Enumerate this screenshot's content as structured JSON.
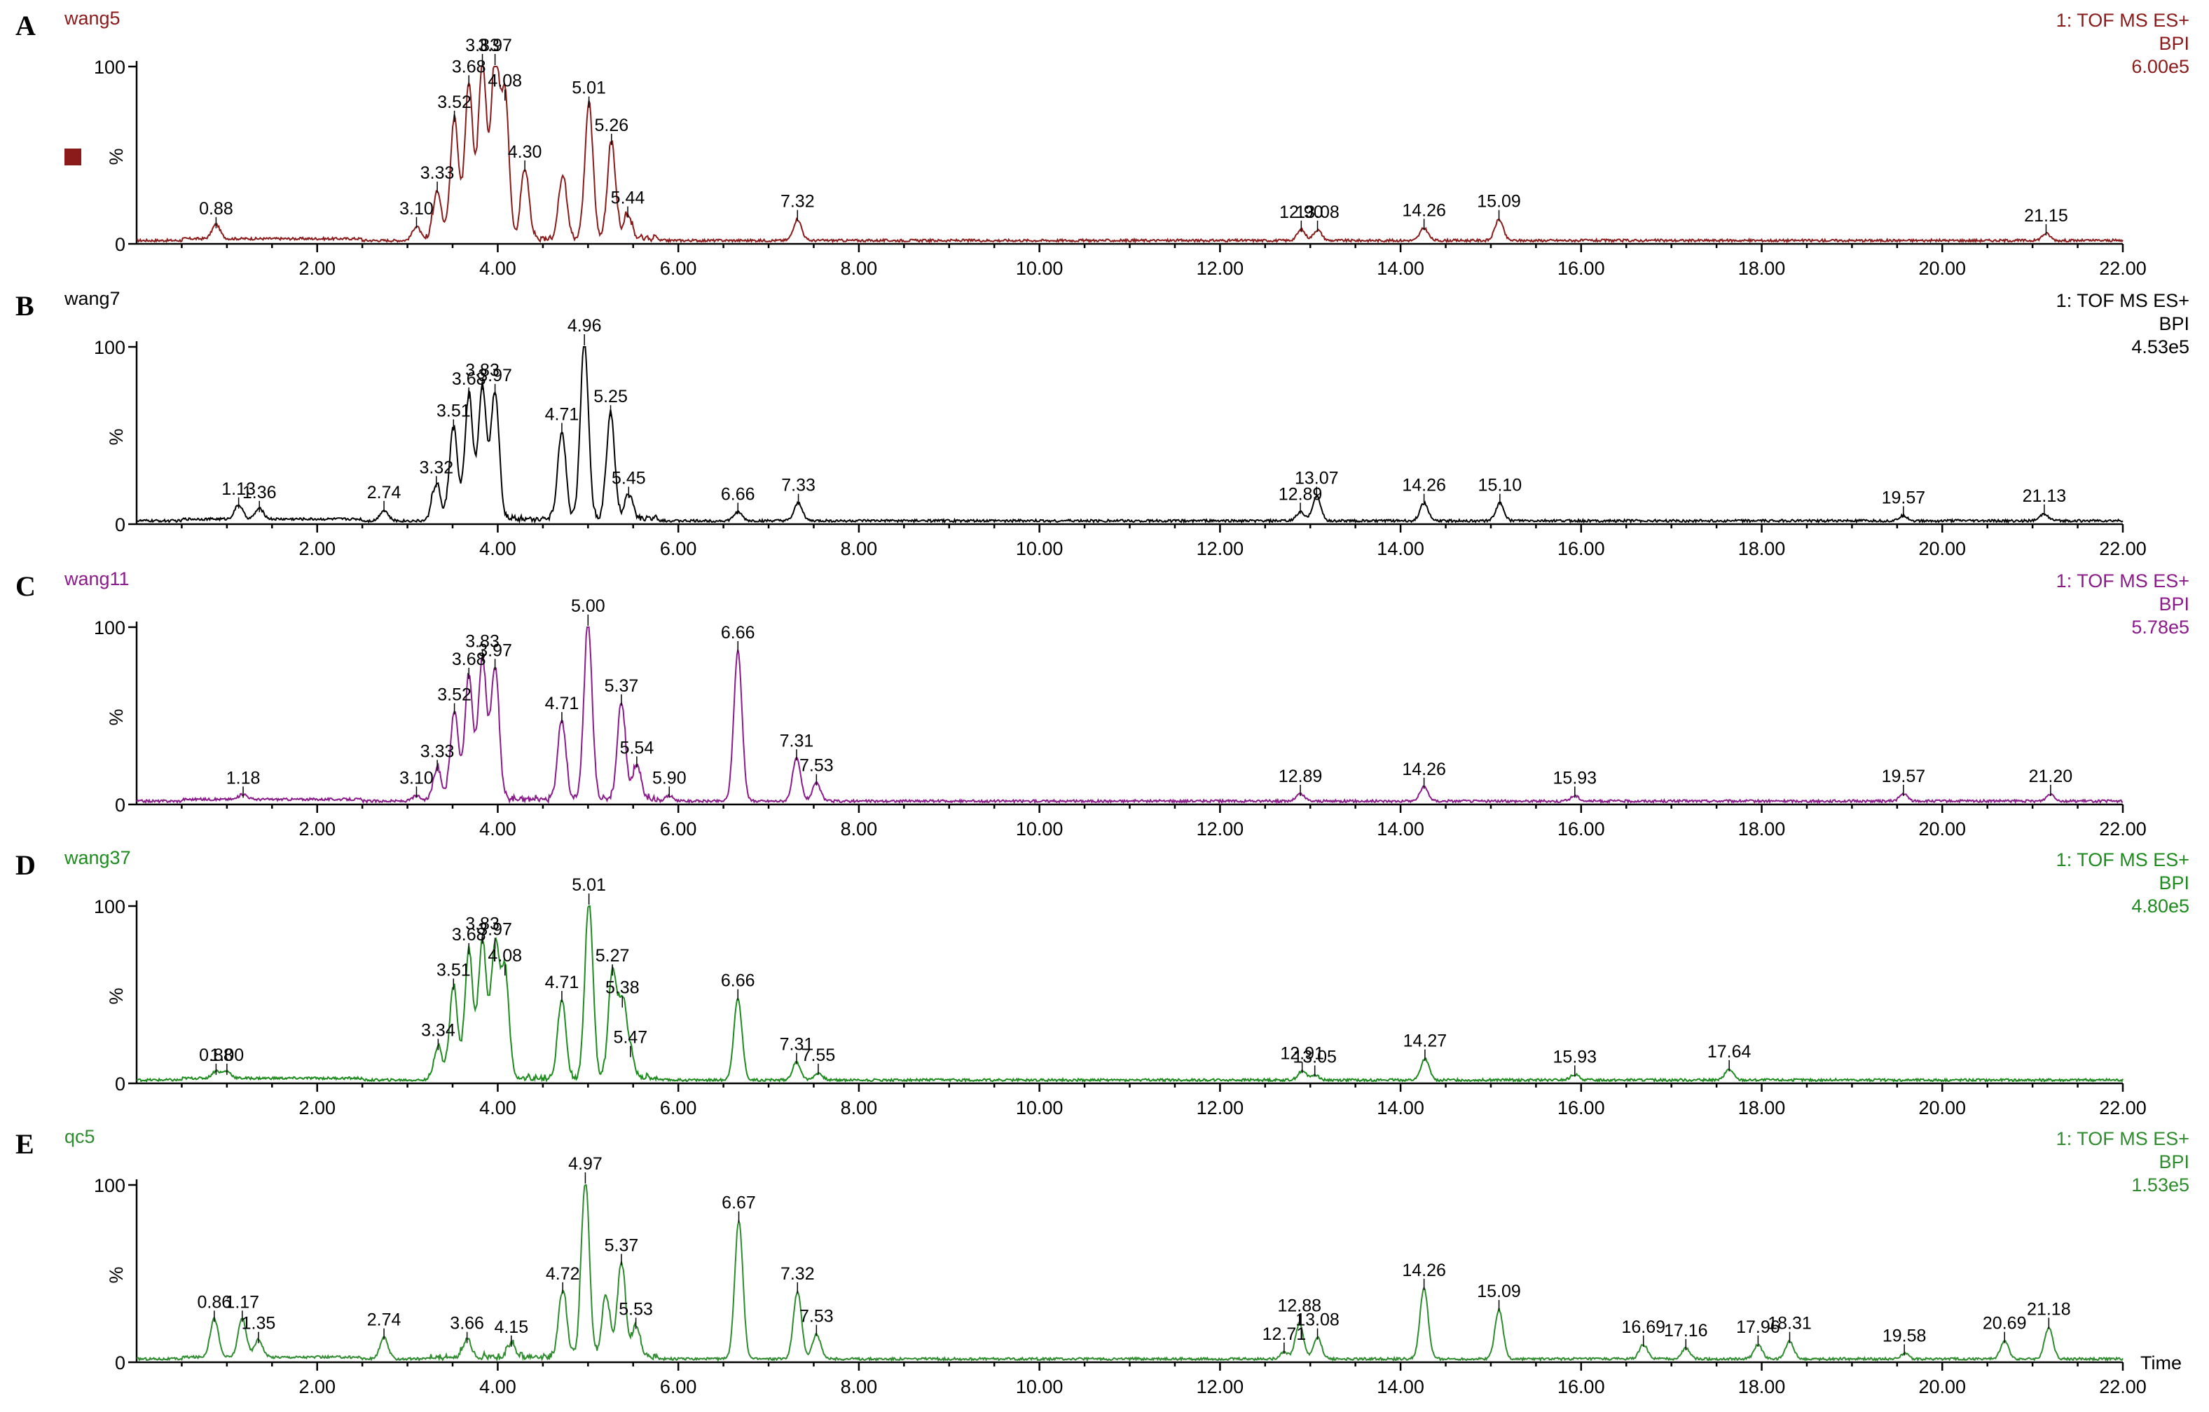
{
  "chart_data": [
    {
      "type": "line",
      "panel": "A",
      "sample": "wang5",
      "color": "#8B1A1A",
      "header": [
        "1: TOF MS ES+",
        "BPI",
        "6.00e5"
      ],
      "ylabel": "%",
      "xlim": [
        0,
        22
      ],
      "ylim": [
        0,
        100
      ],
      "yticks": [
        "0",
        "100"
      ],
      "xticks": [
        "2.00",
        "4.00",
        "6.00",
        "8.00",
        "10.00",
        "12.00",
        "14.00",
        "16.00",
        "18.00",
        "20.00",
        "22.00"
      ],
      "legend_marker": true,
      "peaks": [
        {
          "x": 0.88,
          "y": 8,
          "label": "0.88"
        },
        {
          "x": 3.1,
          "y": 8,
          "label": "3.10"
        },
        {
          "x": 3.33,
          "y": 28,
          "label": "3.33"
        },
        {
          "x": 3.52,
          "y": 68,
          "label": "3.52"
        },
        {
          "x": 3.68,
          "y": 88,
          "label": "3.68"
        },
        {
          "x": 3.83,
          "y": 100,
          "label": "3.83"
        },
        {
          "x": 3.97,
          "y": 100,
          "label": "3.97"
        },
        {
          "x": 4.08,
          "y": 80,
          "label": "4.08"
        },
        {
          "x": 4.3,
          "y": 40,
          "label": "4.30"
        },
        {
          "x": 4.72,
          "y": 36,
          "label": ""
        },
        {
          "x": 5.01,
          "y": 76,
          "label": "5.01"
        },
        {
          "x": 5.26,
          "y": 55,
          "label": "5.26"
        },
        {
          "x": 5.44,
          "y": 14,
          "label": "5.44"
        },
        {
          "x": 7.32,
          "y": 12,
          "label": "7.32"
        },
        {
          "x": 12.9,
          "y": 6,
          "label": "12.90"
        },
        {
          "x": 13.08,
          "y": 6,
          "label": "13.08"
        },
        {
          "x": 14.26,
          "y": 7,
          "label": "14.26"
        },
        {
          "x": 15.09,
          "y": 12,
          "label": "15.09"
        },
        {
          "x": 21.15,
          "y": 4,
          "label": "21.15"
        }
      ]
    },
    {
      "type": "line",
      "panel": "B",
      "sample": "wang7",
      "color": "#000000",
      "header": [
        "1: TOF MS ES+",
        "BPI",
        "4.53e5"
      ],
      "ylabel": "%",
      "xlim": [
        0,
        22
      ],
      "ylim": [
        0,
        100
      ],
      "yticks": [
        "0",
        "100"
      ],
      "xticks": [
        "2.00",
        "4.00",
        "6.00",
        "8.00",
        "10.00",
        "12.00",
        "14.00",
        "16.00",
        "18.00",
        "20.00",
        "22.00"
      ],
      "legend_marker": false,
      "peaks": [
        {
          "x": 1.13,
          "y": 8,
          "label": "1.13"
        },
        {
          "x": 1.36,
          "y": 6,
          "label": "1.36"
        },
        {
          "x": 2.74,
          "y": 6,
          "label": "2.74"
        },
        {
          "x": 3.32,
          "y": 20,
          "label": "3.32"
        },
        {
          "x": 3.51,
          "y": 52,
          "label": "3.51"
        },
        {
          "x": 3.68,
          "y": 70,
          "label": "3.68"
        },
        {
          "x": 3.83,
          "y": 75,
          "label": "3.83"
        },
        {
          "x": 3.97,
          "y": 72,
          "label": "3.97"
        },
        {
          "x": 4.71,
          "y": 50,
          "label": "4.71"
        },
        {
          "x": 4.96,
          "y": 100,
          "label": "4.96"
        },
        {
          "x": 5.25,
          "y": 60,
          "label": "5.25"
        },
        {
          "x": 5.45,
          "y": 14,
          "label": "5.45"
        },
        {
          "x": 6.66,
          "y": 5,
          "label": "6.66"
        },
        {
          "x": 7.33,
          "y": 10,
          "label": "7.33"
        },
        {
          "x": 12.89,
          "y": 5,
          "label": "12.89"
        },
        {
          "x": 13.07,
          "y": 14,
          "label": "13.07"
        },
        {
          "x": 14.26,
          "y": 10,
          "label": "14.26"
        },
        {
          "x": 15.1,
          "y": 10,
          "label": "15.10"
        },
        {
          "x": 19.57,
          "y": 3,
          "label": "19.57"
        },
        {
          "x": 21.13,
          "y": 4,
          "label": "21.13"
        }
      ]
    },
    {
      "type": "line",
      "panel": "C",
      "sample": "wang11",
      "color": "#8B1A8B",
      "header": [
        "1: TOF MS ES+",
        "BPI",
        "5.78e5"
      ],
      "ylabel": "%",
      "xlim": [
        0,
        22
      ],
      "ylim": [
        0,
        100
      ],
      "yticks": [
        "0",
        "100"
      ],
      "xticks": [
        "2.00",
        "4.00",
        "6.00",
        "8.00",
        "10.00",
        "12.00",
        "14.00",
        "16.00",
        "18.00",
        "20.00",
        "22.00"
      ],
      "legend_marker": false,
      "peaks": [
        {
          "x": 1.18,
          "y": 3,
          "label": "1.18"
        },
        {
          "x": 3.1,
          "y": 3,
          "label": "3.10"
        },
        {
          "x": 3.33,
          "y": 18,
          "label": "3.33"
        },
        {
          "x": 3.52,
          "y": 50,
          "label": "3.52"
        },
        {
          "x": 3.68,
          "y": 70,
          "label": "3.68"
        },
        {
          "x": 3.83,
          "y": 80,
          "label": "3.83"
        },
        {
          "x": 3.97,
          "y": 75,
          "label": "3.97"
        },
        {
          "x": 4.71,
          "y": 45,
          "label": "4.71"
        },
        {
          "x": 5.0,
          "y": 100,
          "label": "5.00"
        },
        {
          "x": 5.37,
          "y": 55,
          "label": "5.37"
        },
        {
          "x": 5.54,
          "y": 20,
          "label": "5.54"
        },
        {
          "x": 5.9,
          "y": 3,
          "label": "5.90"
        },
        {
          "x": 6.66,
          "y": 85,
          "label": "6.66"
        },
        {
          "x": 7.31,
          "y": 24,
          "label": "7.31"
        },
        {
          "x": 7.53,
          "y": 10,
          "label": "7.53"
        },
        {
          "x": 12.89,
          "y": 4,
          "label": "12.89"
        },
        {
          "x": 14.26,
          "y": 8,
          "label": "14.26"
        },
        {
          "x": 15.93,
          "y": 3,
          "label": "15.93"
        },
        {
          "x": 19.57,
          "y": 4,
          "label": "19.57"
        },
        {
          "x": 21.2,
          "y": 4,
          "label": "21.20"
        }
      ]
    },
    {
      "type": "line",
      "panel": "D",
      "sample": "wang37",
      "color": "#1E8B1E",
      "header": [
        "1: TOF MS ES+",
        "BPI",
        "4.80e5"
      ],
      "ylabel": "%",
      "xlim": [
        0,
        22
      ],
      "ylim": [
        0,
        100
      ],
      "yticks": [
        "0",
        "100"
      ],
      "xticks": [
        "2.00",
        "4.00",
        "6.00",
        "8.00",
        "10.00",
        "12.00",
        "14.00",
        "16.00",
        "18.00",
        "20.00",
        "22.00"
      ],
      "legend_marker": false,
      "peaks": [
        {
          "x": 0.88,
          "y": 4,
          "label": "0.88"
        },
        {
          "x": 1.0,
          "y": 4,
          "label": "1.00"
        },
        {
          "x": 3.34,
          "y": 18,
          "label": "3.34"
        },
        {
          "x": 3.51,
          "y": 52,
          "label": "3.51"
        },
        {
          "x": 3.68,
          "y": 72,
          "label": "3.68"
        },
        {
          "x": 3.83,
          "y": 78,
          "label": "3.83"
        },
        {
          "x": 3.97,
          "y": 75,
          "label": "3.97"
        },
        {
          "x": 4.08,
          "y": 60,
          "label": "4.08"
        },
        {
          "x": 4.71,
          "y": 45,
          "label": "4.71"
        },
        {
          "x": 5.01,
          "y": 100,
          "label": "5.01"
        },
        {
          "x": 5.27,
          "y": 60,
          "label": "5.27"
        },
        {
          "x": 5.38,
          "y": 42,
          "label": "5.38"
        },
        {
          "x": 5.47,
          "y": 14,
          "label": "5.47"
        },
        {
          "x": 6.66,
          "y": 46,
          "label": "6.66"
        },
        {
          "x": 7.31,
          "y": 10,
          "label": "7.31"
        },
        {
          "x": 7.55,
          "y": 4,
          "label": "7.55"
        },
        {
          "x": 12.91,
          "y": 5,
          "label": "12.91"
        },
        {
          "x": 13.05,
          "y": 3,
          "label": "13.05"
        },
        {
          "x": 14.27,
          "y": 12,
          "label": "14.27"
        },
        {
          "x": 15.93,
          "y": 3,
          "label": "15.93"
        },
        {
          "x": 17.64,
          "y": 6,
          "label": "17.64"
        }
      ]
    },
    {
      "type": "line",
      "panel": "E",
      "sample": "qc5",
      "color": "#2E8B2E",
      "header": [
        "1: TOF MS ES+",
        "BPI",
        "1.53e5"
      ],
      "ylabel": "%",
      "xlabel": "Time",
      "xlim": [
        0,
        22
      ],
      "ylim": [
        0,
        100
      ],
      "yticks": [
        "0",
        "100"
      ],
      "xticks": [
        "2.00",
        "4.00",
        "6.00",
        "8.00",
        "10.00",
        "12.00",
        "14.00",
        "16.00",
        "18.00",
        "20.00",
        "22.00"
      ],
      "legend_marker": false,
      "peaks": [
        {
          "x": 0.86,
          "y": 22,
          "label": "0.86"
        },
        {
          "x": 1.17,
          "y": 22,
          "label": "1.17"
        },
        {
          "x": 1.35,
          "y": 10,
          "label": "1.35"
        },
        {
          "x": 2.74,
          "y": 12,
          "label": "2.74"
        },
        {
          "x": 3.66,
          "y": 10,
          "label": "3.66"
        },
        {
          "x": 4.15,
          "y": 8,
          "label": "4.15"
        },
        {
          "x": 4.72,
          "y": 38,
          "label": "4.72"
        },
        {
          "x": 4.97,
          "y": 100,
          "label": "4.97"
        },
        {
          "x": 5.2,
          "y": 35,
          "label": ""
        },
        {
          "x": 5.37,
          "y": 54,
          "label": "5.37"
        },
        {
          "x": 5.53,
          "y": 18,
          "label": "5.53"
        },
        {
          "x": 6.67,
          "y": 78,
          "label": "6.67"
        },
        {
          "x": 7.32,
          "y": 38,
          "label": "7.32"
        },
        {
          "x": 7.53,
          "y": 14,
          "label": "7.53"
        },
        {
          "x": 12.71,
          "y": 4,
          "label": "12.71"
        },
        {
          "x": 12.88,
          "y": 20,
          "label": "12.88"
        },
        {
          "x": 13.08,
          "y": 12,
          "label": "13.08"
        },
        {
          "x": 14.26,
          "y": 40,
          "label": "14.26"
        },
        {
          "x": 15.09,
          "y": 28,
          "label": "15.09"
        },
        {
          "x": 16.69,
          "y": 8,
          "label": "16.69"
        },
        {
          "x": 17.16,
          "y": 6,
          "label": "17.16"
        },
        {
          "x": 17.96,
          "y": 8,
          "label": "17.96"
        },
        {
          "x": 18.31,
          "y": 10,
          "label": "18.31"
        },
        {
          "x": 19.58,
          "y": 3,
          "label": "19.58"
        },
        {
          "x": 20.69,
          "y": 10,
          "label": "20.69"
        },
        {
          "x": 21.18,
          "y": 18,
          "label": "21.18"
        }
      ]
    }
  ]
}
